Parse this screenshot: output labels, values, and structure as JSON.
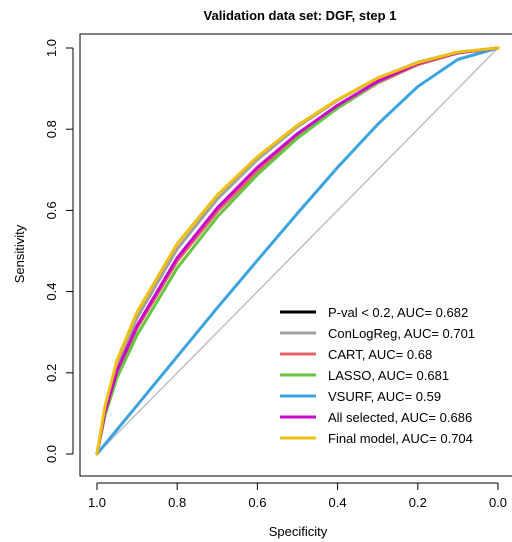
{
  "chart_data": {
    "type": "line",
    "title": "Validation data set: DGF, step 1",
    "xlabel": "Specificity",
    "ylabel": "Sensitivity",
    "xlim": [
      1.0,
      0.0
    ],
    "ylim": [
      0.0,
      1.0
    ],
    "x_reversed": true,
    "x_ticks": [
      "1.0",
      "0.8",
      "0.6",
      "0.4",
      "0.2",
      "0.0"
    ],
    "y_ticks": [
      "0.0",
      "0.2",
      "0.4",
      "0.6",
      "0.8",
      "1.0"
    ],
    "diagonal_reference_line": true,
    "diagonal_color": "#c0c0c0",
    "legend_position": "bottom-right",
    "x": [
      1.0,
      0.98,
      0.95,
      0.9,
      0.8,
      0.7,
      0.6,
      0.5,
      0.4,
      0.3,
      0.2,
      0.1,
      0.0
    ],
    "series": [
      {
        "name": "P-val < 0.2, AUC= 0.682",
        "color": "#000000",
        "values": [
          0.0,
          0.103,
          0.203,
          0.313,
          0.478,
          0.6,
          0.7,
          0.784,
          0.854,
          0.915,
          0.96,
          0.988,
          1.0
        ]
      },
      {
        "name": "ConLogReg, AUC= 0.701",
        "color": "#a0a0a0",
        "values": [
          0.0,
          0.111,
          0.219,
          0.336,
          0.505,
          0.628,
          0.725,
          0.806,
          0.871,
          0.926,
          0.965,
          0.99,
          1.0
        ]
      },
      {
        "name": "CART, AUC= 0.68",
        "color": "#e06666",
        "values": [
          0.0,
          0.102,
          0.201,
          0.31,
          0.475,
          0.597,
          0.697,
          0.782,
          0.852,
          0.914,
          0.959,
          0.988,
          1.0
        ]
      },
      {
        "name": "LASSO, AUC= 0.681",
        "color": "#66c641",
        "values": [
          0.0,
          0.095,
          0.188,
          0.293,
          0.458,
          0.584,
          0.688,
          0.778,
          0.852,
          0.916,
          0.962,
          0.989,
          1.0
        ]
      },
      {
        "name": "VSURF, AUC= 0.59",
        "color": "#3ba3e0",
        "values": [
          0.0,
          0.024,
          0.06,
          0.12,
          0.24,
          0.36,
          0.477,
          0.593,
          0.706,
          0.812,
          0.905,
          0.972,
          1.0
        ]
      },
      {
        "name": "All selected, AUC= 0.686",
        "color": "#cc00cc",
        "values": [
          0.0,
          0.104,
          0.205,
          0.316,
          0.483,
          0.606,
          0.706,
          0.789,
          0.859,
          0.918,
          0.962,
          0.989,
          1.0
        ]
      },
      {
        "name": "Final model, AUC= 0.704",
        "color": "#f0c010",
        "values": [
          0.0,
          0.118,
          0.231,
          0.35,
          0.518,
          0.638,
          0.732,
          0.81,
          0.873,
          0.926,
          0.964,
          0.99,
          1.0
        ]
      }
    ]
  }
}
